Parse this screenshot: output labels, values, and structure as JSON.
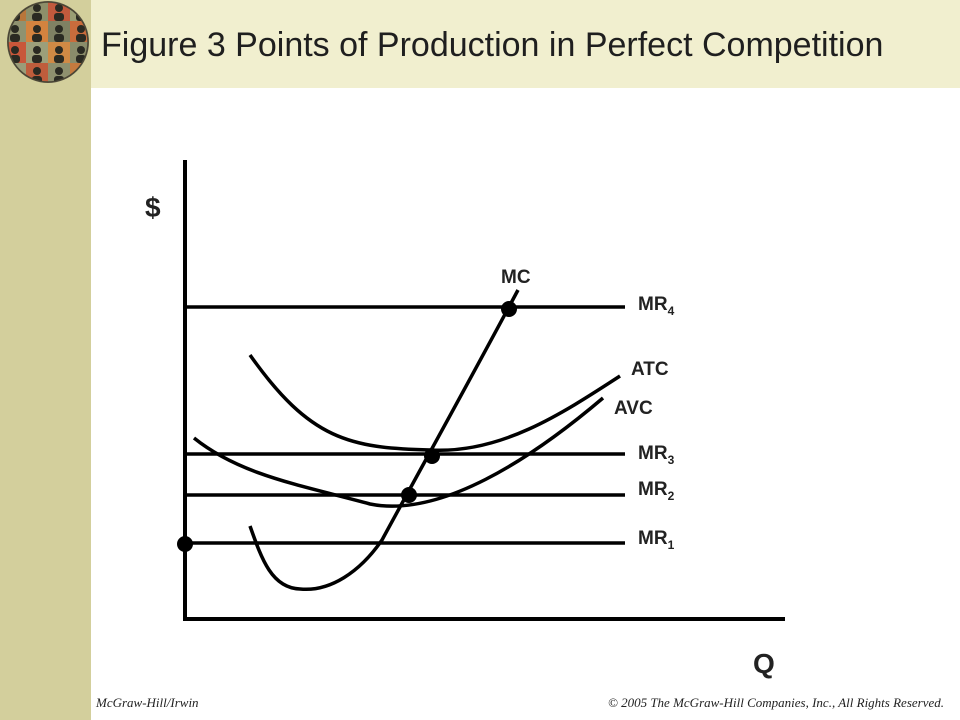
{
  "slide": {
    "title": "Figure 3 Points of Production in Perfect Competition",
    "footer_left": "McGraw-Hill/Irwin",
    "footer_right": "© 2005 The McGraw-Hill Companies, Inc., All Rights Reserved.",
    "logo_icon": "globe-people-icon"
  },
  "diagram": {
    "y_axis_label": "$",
    "x_axis_label": "Q",
    "curves": {
      "mc": "MC",
      "atc": "ATC",
      "avc": "AVC"
    },
    "mr_lines": [
      {
        "name": "MR",
        "sub": "4"
      },
      {
        "name": "MR",
        "sub": "3"
      },
      {
        "name": "MR",
        "sub": "2"
      },
      {
        "name": "MR",
        "sub": "1"
      }
    ]
  },
  "colors": {
    "side_band": "#d3cf9c",
    "title_band": "#f1efcf",
    "line": "#000000"
  }
}
